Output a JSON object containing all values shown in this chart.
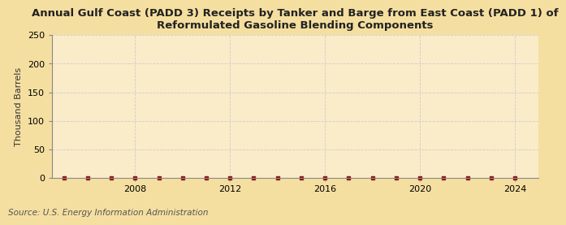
{
  "title": "Annual Gulf Coast (PADD 3) Receipts by Tanker and Barge from East Coast (PADD 1) of\nReformulated Gasoline Blending Components",
  "ylabel": "Thousand Barrels",
  "source": "Source: U.S. Energy Information Administration",
  "background_color": "#f5dfa0",
  "plot_background_color": "#faecc8",
  "xlim": [
    2004.5,
    2025.0
  ],
  "ylim": [
    0,
    250
  ],
  "yticks": [
    0,
    50,
    100,
    150,
    200,
    250
  ],
  "xticks": [
    2008,
    2012,
    2016,
    2020,
    2024
  ],
  "x_data": [
    2005,
    2006,
    2007,
    2008,
    2009,
    2010,
    2011,
    2012,
    2013,
    2014,
    2015,
    2016,
    2017,
    2018,
    2019,
    2020,
    2021,
    2022,
    2023,
    2024
  ],
  "y_data": [
    0,
    0,
    0,
    0,
    0,
    0,
    0,
    0,
    0,
    0,
    0,
    0,
    0,
    0,
    0,
    0,
    0,
    0,
    0,
    0
  ],
  "marker_color": "#8b1a1a",
  "grid_color": "#cccccc",
  "spine_color": "#888888",
  "title_fontsize": 9.5,
  "label_fontsize": 8,
  "tick_fontsize": 8,
  "source_fontsize": 7.5
}
